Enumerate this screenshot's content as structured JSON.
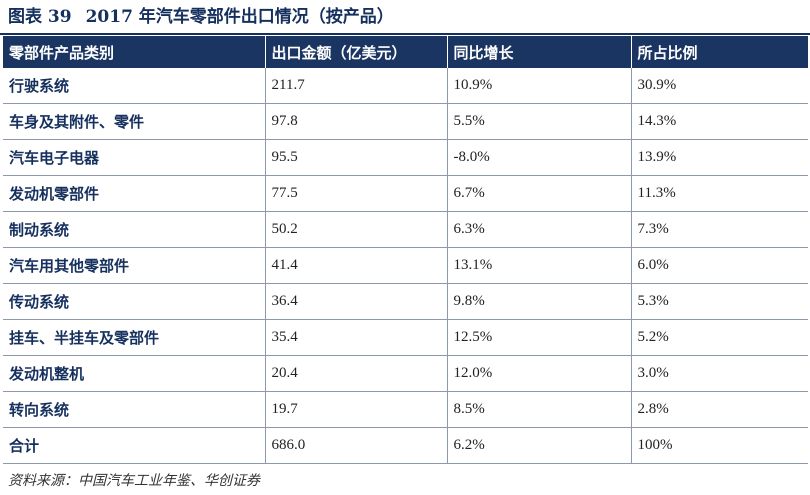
{
  "title": {
    "label": "图表 39",
    "text": "2017 年汽车零部件出口情况（按产品）"
  },
  "table": {
    "headers": [
      "零部件产品类别",
      "出口金额（亿美元）",
      "同比增长",
      "所占比例"
    ],
    "rows": [
      {
        "category": "行驶系统",
        "amount": "211.7",
        "growth": "10.9%",
        "share": "30.9%"
      },
      {
        "category": "车身及其附件、零件",
        "amount": "97.8",
        "growth": "5.5%",
        "share": "14.3%"
      },
      {
        "category": "汽车电子电器",
        "amount": "95.5",
        "growth": "-8.0%",
        "share": "13.9%"
      },
      {
        "category": "发动机零部件",
        "amount": "77.5",
        "growth": "6.7%",
        "share": "11.3%"
      },
      {
        "category": "制动系统",
        "amount": "50.2",
        "growth": "6.3%",
        "share": "7.3%"
      },
      {
        "category": "汽车用其他零部件",
        "amount": "41.4",
        "growth": "13.1%",
        "share": "6.0%"
      },
      {
        "category": "传动系统",
        "amount": "36.4",
        "growth": "9.8%",
        "share": "5.3%"
      },
      {
        "category": "挂车、半挂车及零部件",
        "amount": "35.4",
        "growth": "12.5%",
        "share": "5.2%"
      },
      {
        "category": "发动机整机",
        "amount": "20.4",
        "growth": "12.0%",
        "share": "3.0%"
      },
      {
        "category": "转向系统",
        "amount": "19.7",
        "growth": "8.5%",
        "share": "2.8%"
      },
      {
        "category": "合计",
        "amount": "686.0",
        "growth": "6.2%",
        "share": "100%"
      }
    ]
  },
  "source": "资料来源：中国汽车工业年鉴、华创证券",
  "colors": {
    "header_bg": "#1b3563",
    "title_text": "#16305e",
    "row_border": "#8c98ad"
  }
}
